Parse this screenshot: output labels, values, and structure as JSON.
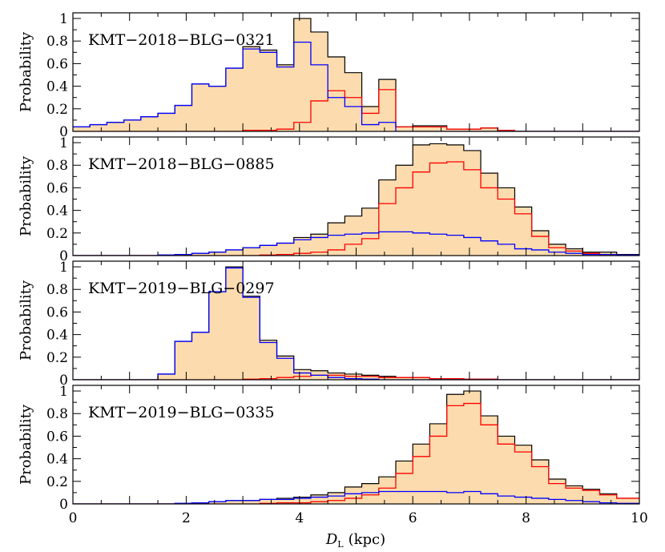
{
  "figure": {
    "xlabel_symbol": "D",
    "xlabel_sub": "L",
    "xlabel_unit": "(kpc)"
  },
  "colors": {
    "total_fill": "#fcdcae",
    "total_line": "#000000",
    "red": "#ff0000",
    "blue": "#0000ff"
  },
  "chart_data": [
    {
      "type": "area",
      "title": "KMT−2018−BLG−0321",
      "ylabel": "Probability",
      "xlabel": "",
      "xlim": [
        0,
        10
      ],
      "ylim": [
        0,
        1.05
      ],
      "xticks": [
        "0",
        "2",
        "4",
        "6",
        "8",
        "10"
      ],
      "yticks": [
        "0",
        "0.2",
        "0.4",
        "0.6",
        "0.8",
        "1"
      ],
      "bin_edges": [
        0,
        0.3,
        0.6,
        0.9,
        1.2,
        1.5,
        1.8,
        2.1,
        2.4,
        2.7,
        3.0,
        3.3,
        3.6,
        3.9,
        4.2,
        4.5,
        4.8,
        5.1,
        5.4,
        5.7,
        6.0,
        6.3,
        6.6,
        6.9,
        7.2,
        7.5,
        7.8,
        8.1,
        8.4,
        8.7,
        9.0,
        9.3,
        9.6,
        10.0
      ],
      "series": [
        {
          "values": [
            0.04,
            0.06,
            0.08,
            0.1,
            0.13,
            0.16,
            0.23,
            0.42,
            0.4,
            0.56,
            0.75,
            0.72,
            0.59,
            1.0,
            0.88,
            0.66,
            0.52,
            0.22,
            0.46,
            0.04,
            0.05,
            0.05,
            0.02,
            0.02,
            0.03,
            0.01,
            0,
            0,
            0,
            0,
            0,
            0,
            0
          ]
        },
        {
          "values": [
            0,
            0,
            0,
            0,
            0,
            0,
            0,
            0,
            0,
            0,
            0.01,
            0.01,
            0.02,
            0.08,
            0.27,
            0.36,
            0.3,
            0.16,
            0.37,
            0.04,
            0.04,
            0.04,
            0.02,
            0.02,
            0.03,
            0.01,
            0,
            0,
            0,
            0,
            0,
            0,
            0
          ]
        },
        {
          "values": [
            0.04,
            0.06,
            0.08,
            0.1,
            0.13,
            0.16,
            0.23,
            0.42,
            0.4,
            0.56,
            0.73,
            0.7,
            0.57,
            0.79,
            0.59,
            0.3,
            0.22,
            0.06,
            0.08,
            0.0,
            0.0,
            0.0,
            0,
            0,
            0,
            0,
            0,
            0,
            0,
            0,
            0,
            0,
            0
          ]
        }
      ]
    },
    {
      "type": "area",
      "title": "KMT−2018−BLG−0885",
      "ylabel": "Probability",
      "xlabel": "",
      "xlim": [
        0,
        10
      ],
      "ylim": [
        0,
        1.05
      ],
      "xticks": [
        "0",
        "2",
        "4",
        "6",
        "8",
        "10"
      ],
      "yticks": [
        "0",
        "0.2",
        "0.4",
        "0.6",
        "0.8",
        "1"
      ],
      "bin_edges": [
        0,
        0.3,
        0.6,
        0.9,
        1.2,
        1.5,
        1.8,
        2.1,
        2.4,
        2.7,
        3.0,
        3.3,
        3.6,
        3.9,
        4.2,
        4.5,
        4.8,
        5.1,
        5.4,
        5.7,
        6.0,
        6.3,
        6.6,
        6.9,
        7.2,
        7.5,
        7.8,
        8.1,
        8.4,
        8.7,
        9.0,
        9.3,
        9.6,
        10.0
      ],
      "series": [
        {
          "values": [
            0,
            0,
            0,
            0,
            0,
            0.005,
            0.01,
            0.02,
            0.03,
            0.05,
            0.07,
            0.09,
            0.11,
            0.16,
            0.19,
            0.29,
            0.35,
            0.42,
            0.67,
            0.8,
            0.98,
            0.99,
            0.98,
            0.93,
            0.73,
            0.6,
            0.43,
            0.22,
            0.1,
            0.06,
            0.03,
            0.03,
            0.01
          ]
        },
        {
          "values": [
            0,
            0,
            0,
            0,
            0,
            0,
            0,
            0,
            0,
            0,
            0,
            0.005,
            0.01,
            0.02,
            0.03,
            0.05,
            0.1,
            0.15,
            0.46,
            0.6,
            0.74,
            0.82,
            0.83,
            0.76,
            0.6,
            0.5,
            0.37,
            0.17,
            0.07,
            0.04,
            0.02,
            0.01,
            0.005
          ]
        },
        {
          "values": [
            0,
            0,
            0,
            0,
            0,
            0.005,
            0.01,
            0.02,
            0.03,
            0.05,
            0.07,
            0.09,
            0.11,
            0.14,
            0.16,
            0.18,
            0.19,
            0.2,
            0.21,
            0.21,
            0.2,
            0.19,
            0.18,
            0.16,
            0.13,
            0.1,
            0.06,
            0.05,
            0.03,
            0.02,
            0.01,
            0.01,
            0.005
          ]
        }
      ]
    },
    {
      "type": "area",
      "title": "KMT−2019−BLG−0297",
      "ylabel": "Probability",
      "xlabel": "",
      "xlim": [
        0,
        10
      ],
      "ylim": [
        0,
        1.05
      ],
      "xticks": [
        "0",
        "2",
        "4",
        "6",
        "8",
        "10"
      ],
      "yticks": [
        "0",
        "0.2",
        "0.4",
        "0.6",
        "0.8",
        "1"
      ],
      "bin_edges": [
        0,
        0.3,
        0.6,
        0.9,
        1.2,
        1.5,
        1.8,
        2.1,
        2.4,
        2.7,
        3.0,
        3.3,
        3.6,
        3.9,
        4.2,
        4.5,
        4.8,
        5.1,
        5.4,
        5.7,
        6.0,
        6.3,
        6.6,
        6.9,
        7.2,
        7.5,
        7.8,
        8.1,
        8.4,
        8.7,
        9.0,
        9.3,
        9.6,
        10.0
      ],
      "series": [
        {
          "values": [
            0,
            0,
            0,
            0,
            0,
            0.05,
            0.34,
            0.42,
            0.78,
            1.0,
            0.74,
            0.35,
            0.21,
            0.09,
            0.08,
            0.06,
            0.05,
            0.04,
            0.03,
            0.02,
            0.02,
            0.01,
            0.01,
            0.005,
            0.005,
            0,
            0,
            0,
            0,
            0,
            0,
            0,
            0
          ]
        },
        {
          "values": [
            0,
            0,
            0,
            0,
            0,
            0,
            0,
            0,
            0,
            0,
            0.005,
            0.01,
            0.02,
            0.03,
            0.04,
            0.04,
            0.03,
            0.03,
            0.02,
            0.02,
            0.02,
            0.01,
            0.01,
            0.005,
            0.005,
            0,
            0,
            0,
            0,
            0,
            0,
            0,
            0
          ]
        },
        {
          "values": [
            0,
            0,
            0,
            0,
            0,
            0.05,
            0.34,
            0.42,
            0.78,
            0.99,
            0.73,
            0.33,
            0.19,
            0.06,
            0.04,
            0.02,
            0.01,
            0.005,
            0,
            0,
            0,
            0,
            0,
            0,
            0,
            0,
            0,
            0,
            0,
            0,
            0,
            0,
            0
          ]
        }
      ]
    },
    {
      "type": "area",
      "title": "KMT−2019−BLG−0335",
      "ylabel": "Probability",
      "xlabel": "D_L (kpc)",
      "xlim": [
        0,
        10
      ],
      "ylim": [
        0,
        1.05
      ],
      "xticks": [
        "0",
        "2",
        "4",
        "6",
        "8",
        "10"
      ],
      "yticks": [
        "0",
        "0.2",
        "0.4",
        "0.6",
        "0.8",
        "1"
      ],
      "bin_edges": [
        0,
        0.3,
        0.6,
        0.9,
        1.2,
        1.5,
        1.8,
        2.1,
        2.4,
        2.7,
        3.0,
        3.3,
        3.6,
        3.9,
        4.2,
        4.5,
        4.8,
        5.1,
        5.4,
        5.7,
        6.0,
        6.3,
        6.6,
        6.9,
        7.2,
        7.5,
        7.8,
        8.1,
        8.4,
        8.7,
        9.0,
        9.3,
        9.6,
        10.0
      ],
      "series": [
        {
          "values": [
            0,
            0,
            0,
            0,
            0,
            0,
            0.005,
            0.01,
            0.02,
            0.03,
            0.03,
            0.04,
            0.05,
            0.06,
            0.08,
            0.1,
            0.15,
            0.18,
            0.24,
            0.38,
            0.53,
            0.71,
            0.97,
            1.0,
            0.78,
            0.6,
            0.52,
            0.39,
            0.22,
            0.16,
            0.13,
            0.09,
            0.05
          ]
        },
        {
          "values": [
            0,
            0,
            0,
            0,
            0,
            0,
            0,
            0,
            0,
            0,
            0,
            0.005,
            0.01,
            0.01,
            0.02,
            0.03,
            0.05,
            0.08,
            0.14,
            0.27,
            0.42,
            0.6,
            0.87,
            0.89,
            0.7,
            0.53,
            0.46,
            0.33,
            0.18,
            0.14,
            0.12,
            0.08,
            0.05
          ]
        },
        {
          "values": [
            0,
            0,
            0,
            0,
            0,
            0,
            0.005,
            0.01,
            0.02,
            0.03,
            0.03,
            0.04,
            0.04,
            0.05,
            0.06,
            0.07,
            0.09,
            0.1,
            0.11,
            0.11,
            0.11,
            0.11,
            0.1,
            0.11,
            0.09,
            0.07,
            0.06,
            0.05,
            0.04,
            0.03,
            0.02,
            0.01,
            0.005
          ]
        }
      ]
    }
  ]
}
